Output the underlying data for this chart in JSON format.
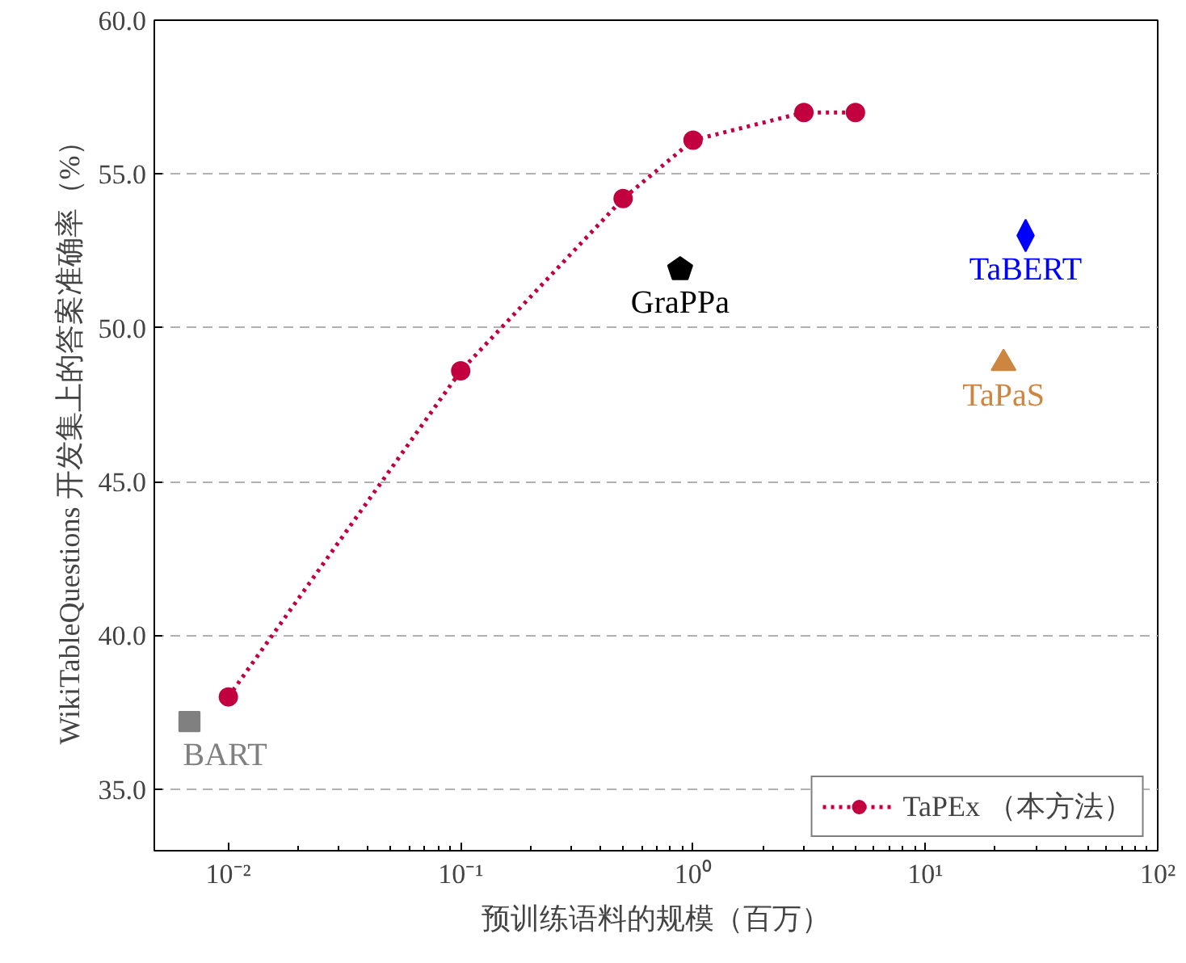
{
  "chart_data": {
    "type": "line",
    "xlabel": "预训练语料的规模（百万）",
    "ylabel": "WikiTableQuestions 开发集上的答案准确率（%）",
    "log": "x",
    "xlim": [
      0.0048,
      100
    ],
    "ylim": [
      33.0,
      60.0
    ],
    "xticks": [
      {
        "value": 0.01,
        "label": "10⁻²"
      },
      {
        "value": 0.1,
        "label": "10⁻¹"
      },
      {
        "value": 1,
        "label": "10⁰"
      },
      {
        "value": 10,
        "label": "10¹"
      },
      {
        "value": 100,
        "label": "10²"
      }
    ],
    "yticks": [
      {
        "value": 35,
        "label": "35.0"
      },
      {
        "value": 40,
        "label": "40.0"
      },
      {
        "value": 45,
        "label": "45.0"
      },
      {
        "value": 50,
        "label": "50.0"
      },
      {
        "value": 55,
        "label": "55.0"
      },
      {
        "value": 60,
        "label": "60.0"
      }
    ],
    "grid": "y",
    "legend": "bottom right",
    "series": [
      {
        "name": "TaPEx （本方法）",
        "color": "#c2003f",
        "marker": "circle",
        "line_style": "dotted",
        "x": [
          0.01,
          0.1,
          0.5,
          1,
          3,
          5
        ],
        "values": [
          38.0,
          48.6,
          54.2,
          56.1,
          57.0,
          57.0
        ]
      },
      {
        "name": "BART",
        "type": "scatter",
        "color": "#808080",
        "marker": "square",
        "x": [
          0.0068
        ],
        "values": [
          37.2
        ]
      },
      {
        "name": "GraPPa",
        "type": "scatter",
        "color": "#000000",
        "x": [
          0.88
        ],
        "values": [
          51.9
        ]
      },
      {
        "name": "TaBERT",
        "type": "scatter",
        "color": "#0000ff",
        "marker": "diamond",
        "x": [
          27
        ],
        "values": [
          53.0
        ]
      },
      {
        "name": "TaPaS",
        "type": "scatter",
        "color": "#cd853f",
        "marker": "triangle",
        "x": [
          21.7
        ],
        "values": [
          48.9
        ]
      }
    ]
  }
}
